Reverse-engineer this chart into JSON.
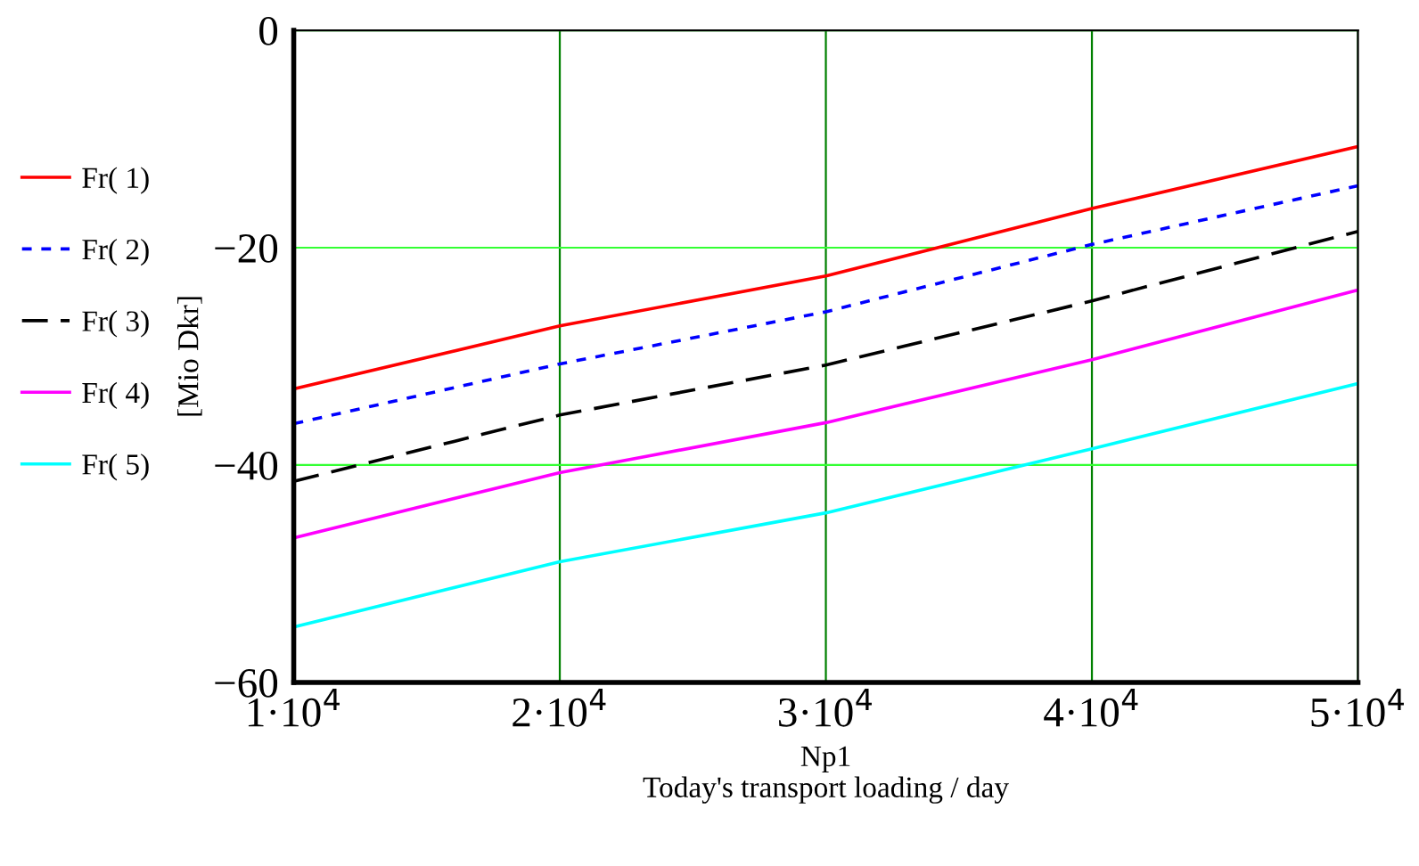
{
  "chart_data": {
    "type": "line",
    "xlabel": "Np1\nToday's transport loading / day",
    "ylabel": "[Mio Dkr]",
    "x": [
      10000,
      20000,
      30000,
      40000,
      50000
    ],
    "series": [
      {
        "name": "Fr( 1)",
        "color": "#ff0000",
        "line_style": "solid",
        "values": [
          -33,
          -27.2,
          -22.6,
          -16.4,
          -10.7
        ]
      },
      {
        "name": "Fr( 2)",
        "color": "#0000ff",
        "line_style": "dotted",
        "values": [
          -36.2,
          -30.7,
          -25.9,
          -19.7,
          -14.3
        ]
      },
      {
        "name": "Fr( 3)",
        "color": "#000000",
        "line_style": "dashed",
        "values": [
          -41.5,
          -35.4,
          -30.8,
          -24.9,
          -18.5
        ]
      },
      {
        "name": "Fr( 4)",
        "color": "#ff00ff",
        "line_style": "solid",
        "values": [
          -46.7,
          -40.7,
          -36.1,
          -30.3,
          -23.9
        ]
      },
      {
        "name": "Fr( 5)",
        "color": "#00ffff",
        "line_style": "solid",
        "values": [
          -54.9,
          -48.9,
          -44.4,
          -38.5,
          -32.5
        ]
      }
    ],
    "xlim": [
      10000,
      50000
    ],
    "xticks": [
      {
        "value": 10000,
        "label": "1·10$^{4}$"
      },
      {
        "value": 20000,
        "label": "2·10$^{4}$"
      },
      {
        "value": 30000,
        "label": "3·10$^{4}$"
      },
      {
        "value": 40000,
        "label": "4·10$^{4}$"
      },
      {
        "value": 50000,
        "label": "5·10$^{4}$"
      }
    ],
    "ylim": [
      -60,
      0
    ],
    "yticks": [
      {
        "value": -60,
        "label": "−60"
      },
      {
        "value": -40,
        "label": "−40"
      },
      {
        "value": -20,
        "label": "−20"
      },
      {
        "value": 0,
        "label": "0"
      }
    ],
    "grid": true,
    "legend": "left",
    "marker": "none"
  }
}
